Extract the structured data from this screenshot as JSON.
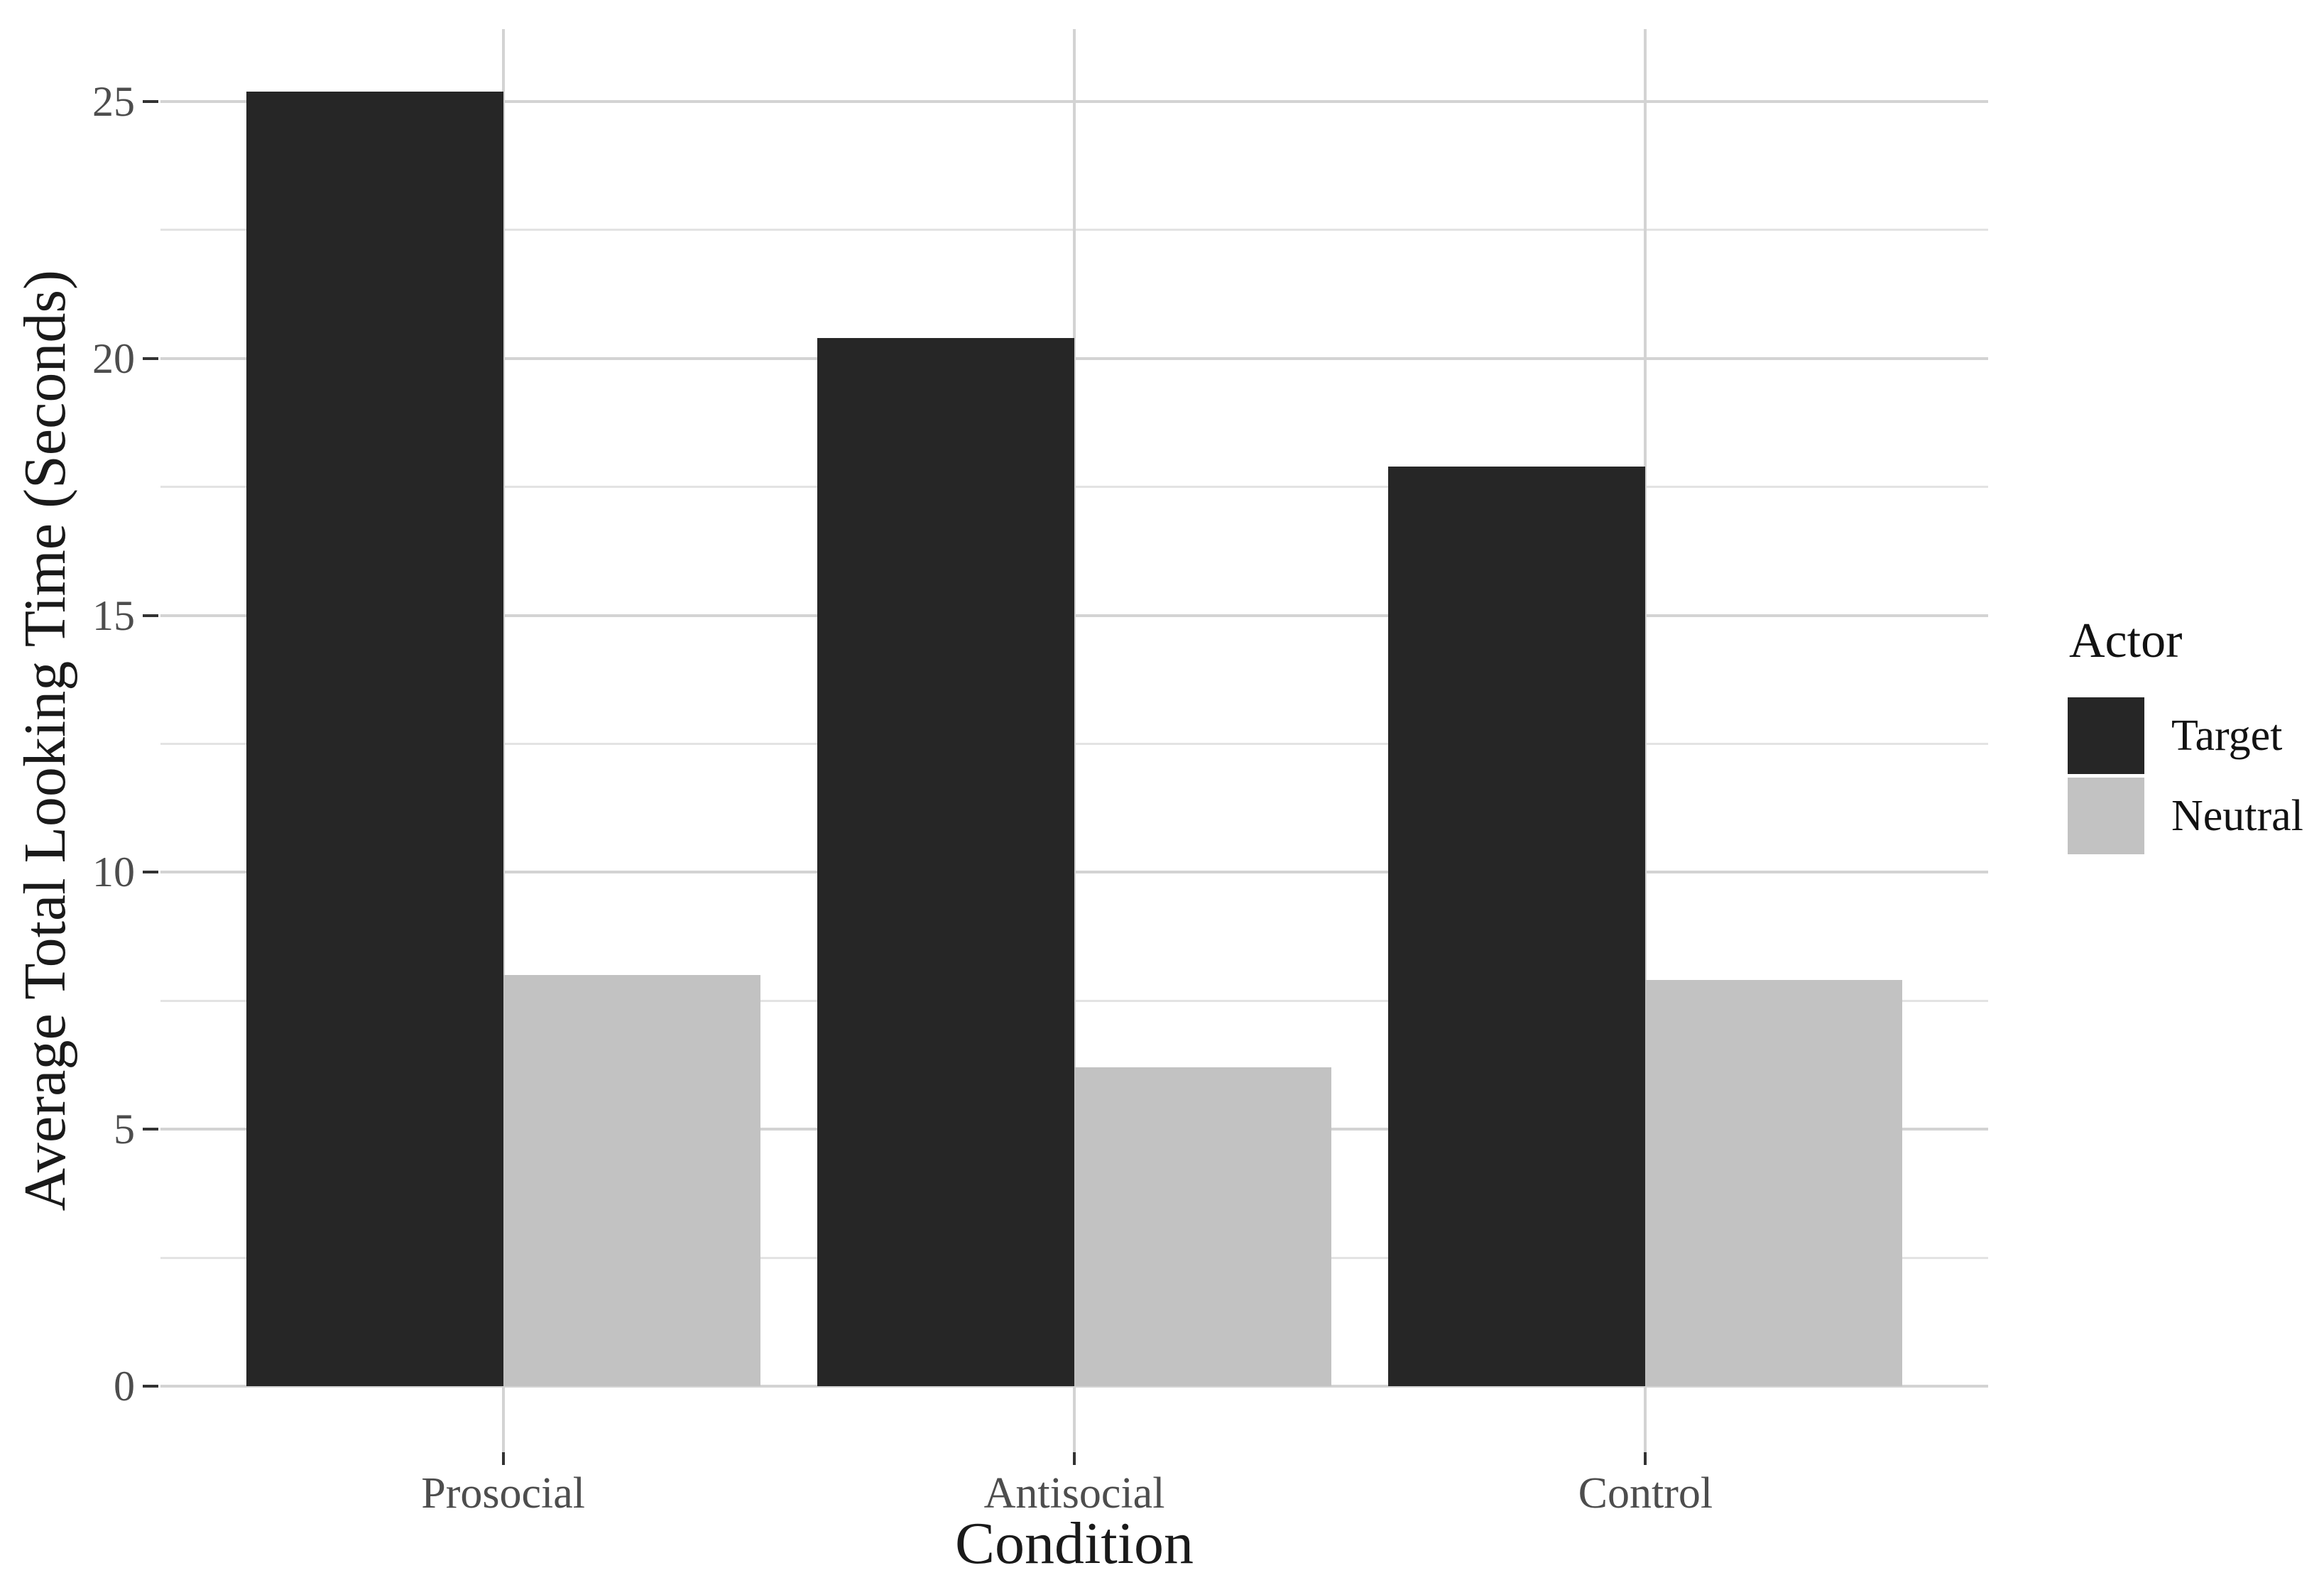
{
  "chart_data": {
    "type": "bar",
    "title": "",
    "categories": [
      "Prosocial",
      "Antisocial",
      "Control"
    ],
    "series": [
      {
        "name": "Target",
        "values": [
          25.2,
          20.4,
          17.9
        ]
      },
      {
        "name": "Neutral",
        "values": [
          8.0,
          6.2,
          7.9
        ]
      }
    ],
    "xlabel": "Condition",
    "ylabel": "Average Total Looking Time (Seconds)",
    "ylim": [
      0,
      26.4
    ],
    "yticks": [
      0,
      5,
      10,
      15,
      20,
      25
    ],
    "yminor": [
      2.5,
      7.5,
      12.5,
      17.5,
      22.5
    ],
    "grid": "horizontal major+minor, vertical at category centers",
    "legend": {
      "title": "Actor",
      "position": "right",
      "entries": [
        "Target",
        "Neutral"
      ]
    }
  },
  "colors": {
    "background": "#ffffff",
    "bar_target": "#262626",
    "bar_neutral": "#c2c2c2",
    "grid_major": "#d3d3d3",
    "grid_minor": "#e3e3e3",
    "tick_mark": "#333333",
    "tick_label": "#4d4d4d",
    "axis_title": "#1a1a1a",
    "legend_text": "#121212"
  }
}
